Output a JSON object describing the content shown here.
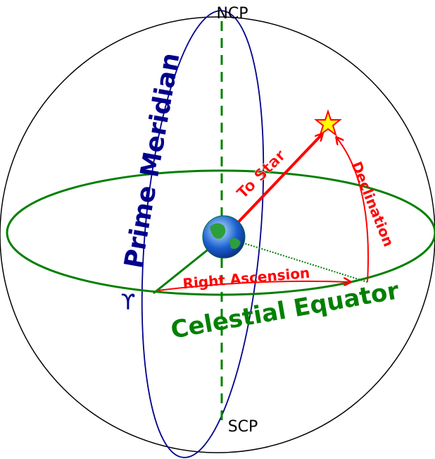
{
  "labels": {
    "ncp": "NCP",
    "scp": "SCP",
    "prime_meridian": "Prime Meridian",
    "to_star": "To Star",
    "declination": "Declination",
    "right_ascension": "Right Ascension",
    "celestial_equator": "Celestial Equator",
    "vernal_equinox": "ϒ"
  }
}
